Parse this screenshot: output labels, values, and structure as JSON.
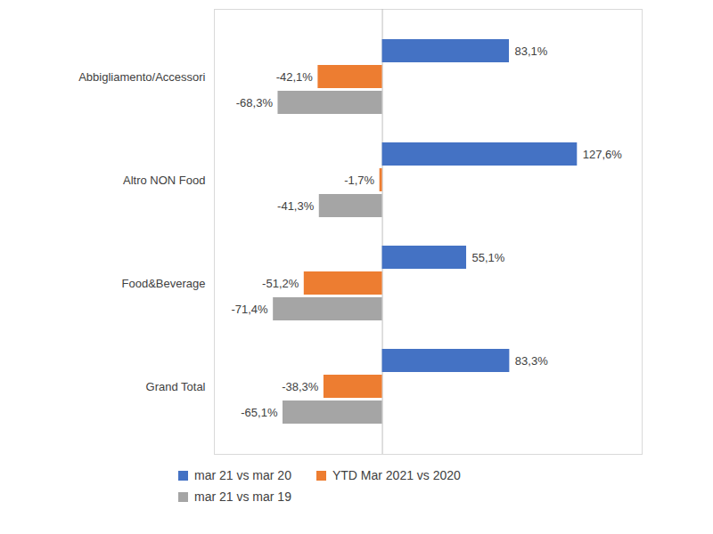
{
  "chart_data": {
    "type": "bar",
    "orientation": "horizontal",
    "categories": [
      "Abbigliamento/Accessori",
      "Altro NON Food",
      "Food&Beverage",
      "Grand Total"
    ],
    "series": [
      {
        "name": "mar 21 vs mar 20",
        "color": "#4472c4",
        "values": [
          83.1,
          127.6,
          55.1,
          83.3
        ],
        "value_labels": [
          "83,1%",
          "127,6%",
          "55,1%",
          "83,3%"
        ]
      },
      {
        "name": "YTD Mar 2021 vs 2020",
        "color": "#ed7d31",
        "values": [
          -42.1,
          -1.7,
          -51.2,
          -38.3
        ],
        "value_labels": [
          "-42,1%",
          "-1,7%",
          "-51,2%",
          "-38,3%"
        ]
      },
      {
        "name": "mar 21 vs mar 19",
        "color": "#a5a5a5",
        "values": [
          -68.3,
          -41.3,
          -71.4,
          -65.1
        ],
        "value_labels": [
          "-68,3%",
          "-41,3%",
          "-71,4%",
          "-65,1%"
        ]
      }
    ],
    "xlim": [
      -110,
      170
    ],
    "xticks": [
      0
    ],
    "tick_labels": "y",
    "data_labels": true,
    "legend": "bottom"
  }
}
